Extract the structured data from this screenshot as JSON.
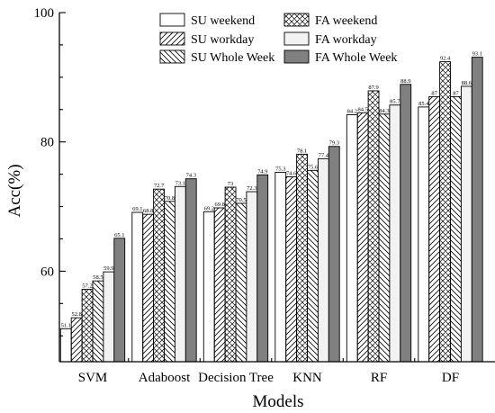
{
  "chart_data": {
    "type": "bar",
    "title": "",
    "xlabel": "Models",
    "ylabel": "Acc(%)",
    "ylim": [
      46,
      100
    ],
    "yticks": [
      60,
      80,
      100
    ],
    "grid": false,
    "legend_position": "top-right",
    "categories": [
      "SVM",
      "Adaboost",
      "Decision Tree",
      "KNN",
      "RF",
      "DF"
    ],
    "series": [
      {
        "name": "SU weekend",
        "fill": "#ffffff",
        "pattern": "none",
        "values": [
          51.1,
          69.1,
          69.2,
          75.3,
          84.2,
          85.4
        ]
      },
      {
        "name": "SU workday",
        "fill": "#ffffff",
        "pattern": "fwd",
        "values": [
          52.8,
          68.8,
          69.8,
          74.6,
          84.5,
          87.0
        ]
      },
      {
        "name": "FA weekend",
        "fill": "#ffffff",
        "pattern": "cross",
        "values": [
          57.2,
          72.7,
          73.0,
          78.1,
          87.9,
          92.4
        ]
      },
      {
        "name": "SU Whole Week",
        "fill": "#ffffff",
        "pattern": "back",
        "values": [
          58.5,
          70.8,
          70.5,
          75.6,
          84.3,
          87.0
        ]
      },
      {
        "name": "FA workday",
        "fill": "#f2f2f2",
        "pattern": "none",
        "values": [
          59.9,
          73.1,
          72.3,
          77.4,
          85.7,
          88.6
        ]
      },
      {
        "name": "FA Whole Week",
        "fill": "#808080",
        "pattern": "none",
        "values": [
          65.1,
          74.3,
          74.9,
          79.3,
          88.9,
          93.1
        ]
      }
    ],
    "data_labels": [
      [
        "51.1",
        "52.8",
        "57.2",
        "58.5",
        "59.9",
        "65.1"
      ],
      [
        "69.1",
        "68.8",
        "72.7",
        "70.8",
        "73.1",
        "74.3"
      ],
      [
        "69.2",
        "69.8",
        "73",
        "70.5",
        "72.3",
        "74.9"
      ],
      [
        "75.3",
        "74.6",
        "78.1",
        "75.6",
        "77.4",
        "79.3"
      ],
      [
        "84.2",
        "84.5",
        "87.9",
        "84.3",
        "85.7",
        "88.9"
      ],
      [
        "85.4",
        "87",
        "92.4",
        "87",
        "88.6",
        "93.1"
      ]
    ],
    "legend": {
      "columns": [
        [
          "SU weekend",
          "SU workday",
          "SU Whole Week"
        ],
        [
          "FA weekend",
          "FA workday",
          "FA Whole Week"
        ]
      ]
    }
  }
}
